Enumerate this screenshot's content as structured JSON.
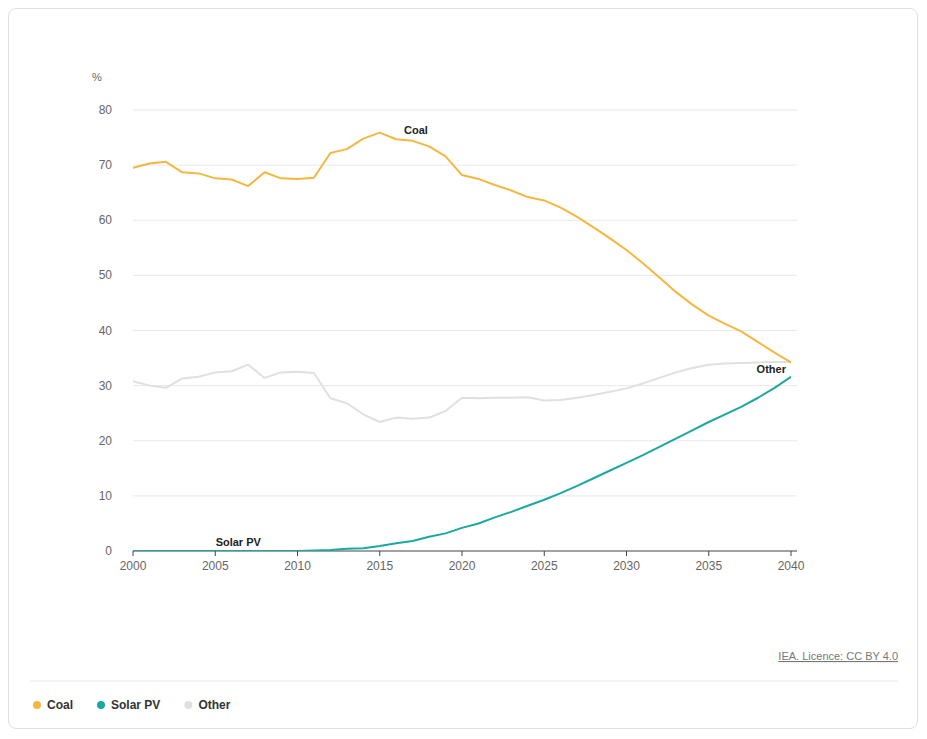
{
  "chart_data": {
    "type": "line",
    "y_label": "%",
    "source": "IEA. Licence: CC BY 4.0",
    "x": [
      2000,
      2001,
      2002,
      2003,
      2004,
      2005,
      2006,
      2007,
      2008,
      2009,
      2010,
      2011,
      2012,
      2013,
      2014,
      2015,
      2016,
      2017,
      2018,
      2019,
      2020,
      2021,
      2022,
      2023,
      2024,
      2025,
      2026,
      2027,
      2028,
      2029,
      2030,
      2031,
      2032,
      2033,
      2034,
      2035,
      2036,
      2037,
      2038,
      2039,
      2040
    ],
    "xlim": [
      2000,
      2040
    ],
    "xticks": [
      2000,
      2005,
      2010,
      2015,
      2020,
      2025,
      2030,
      2035,
      2040
    ],
    "ylim": [
      0,
      80
    ],
    "yticks": [
      0,
      10,
      20,
      30,
      40,
      50,
      60,
      70,
      80
    ],
    "grid": true,
    "legend": "bottom-left",
    "series": [
      {
        "name": "Coal",
        "color": "#f4b740",
        "values": [
          69.5,
          70.3,
          70.6,
          68.7,
          68.5,
          67.6,
          67.4,
          66.2,
          68.7,
          67.6,
          67.5,
          67.7,
          72.2,
          72.9,
          74.8,
          75.9,
          74.7,
          74.4,
          73.4,
          71.6,
          68.2,
          67.5,
          66.4,
          65.4,
          64.2,
          63.6,
          62.3,
          60.6,
          58.7,
          56.7,
          54.6,
          52.2,
          49.6,
          47.0,
          44.7,
          42.7,
          41.2,
          39.8,
          37.9,
          36.0,
          34.2
        ]
      },
      {
        "name": "Solar PV",
        "color": "#1ba99f",
        "values": [
          0,
          0,
          0,
          0,
          0,
          0,
          0,
          0,
          0,
          0,
          0,
          0.1,
          0.2,
          0.4,
          0.5,
          0.9,
          1.4,
          1.8,
          2.6,
          3.2,
          4.2,
          5.0,
          6.1,
          7.1,
          8.2,
          9.3,
          10.5,
          11.8,
          13.2,
          14.6,
          16.0,
          17.4,
          18.9,
          20.4,
          21.9,
          23.4,
          24.8,
          26.2,
          27.8,
          29.6,
          31.6
        ]
      },
      {
        "name": "Other",
        "color": "#e0e0e0",
        "values": [
          30.8,
          30.0,
          29.6,
          31.3,
          31.6,
          32.4,
          32.6,
          33.8,
          31.4,
          32.4,
          32.5,
          32.3,
          27.7,
          26.8,
          24.8,
          23.4,
          24.2,
          24.0,
          24.2,
          25.4,
          27.8,
          27.7,
          27.8,
          27.8,
          27.9,
          27.3,
          27.4,
          27.8,
          28.3,
          28.9,
          29.5,
          30.4,
          31.4,
          32.4,
          33.2,
          33.8,
          34.0,
          34.1,
          34.2,
          34.3,
          34.3
        ]
      }
    ],
    "annotations": [
      {
        "text": "Coal",
        "x": 2017.2,
        "y": 75.6
      },
      {
        "text": "Other",
        "x": 2038.8,
        "y": 32.2
      },
      {
        "text": "Solar PV",
        "x": 2006.4,
        "y": 0.9
      }
    ]
  }
}
